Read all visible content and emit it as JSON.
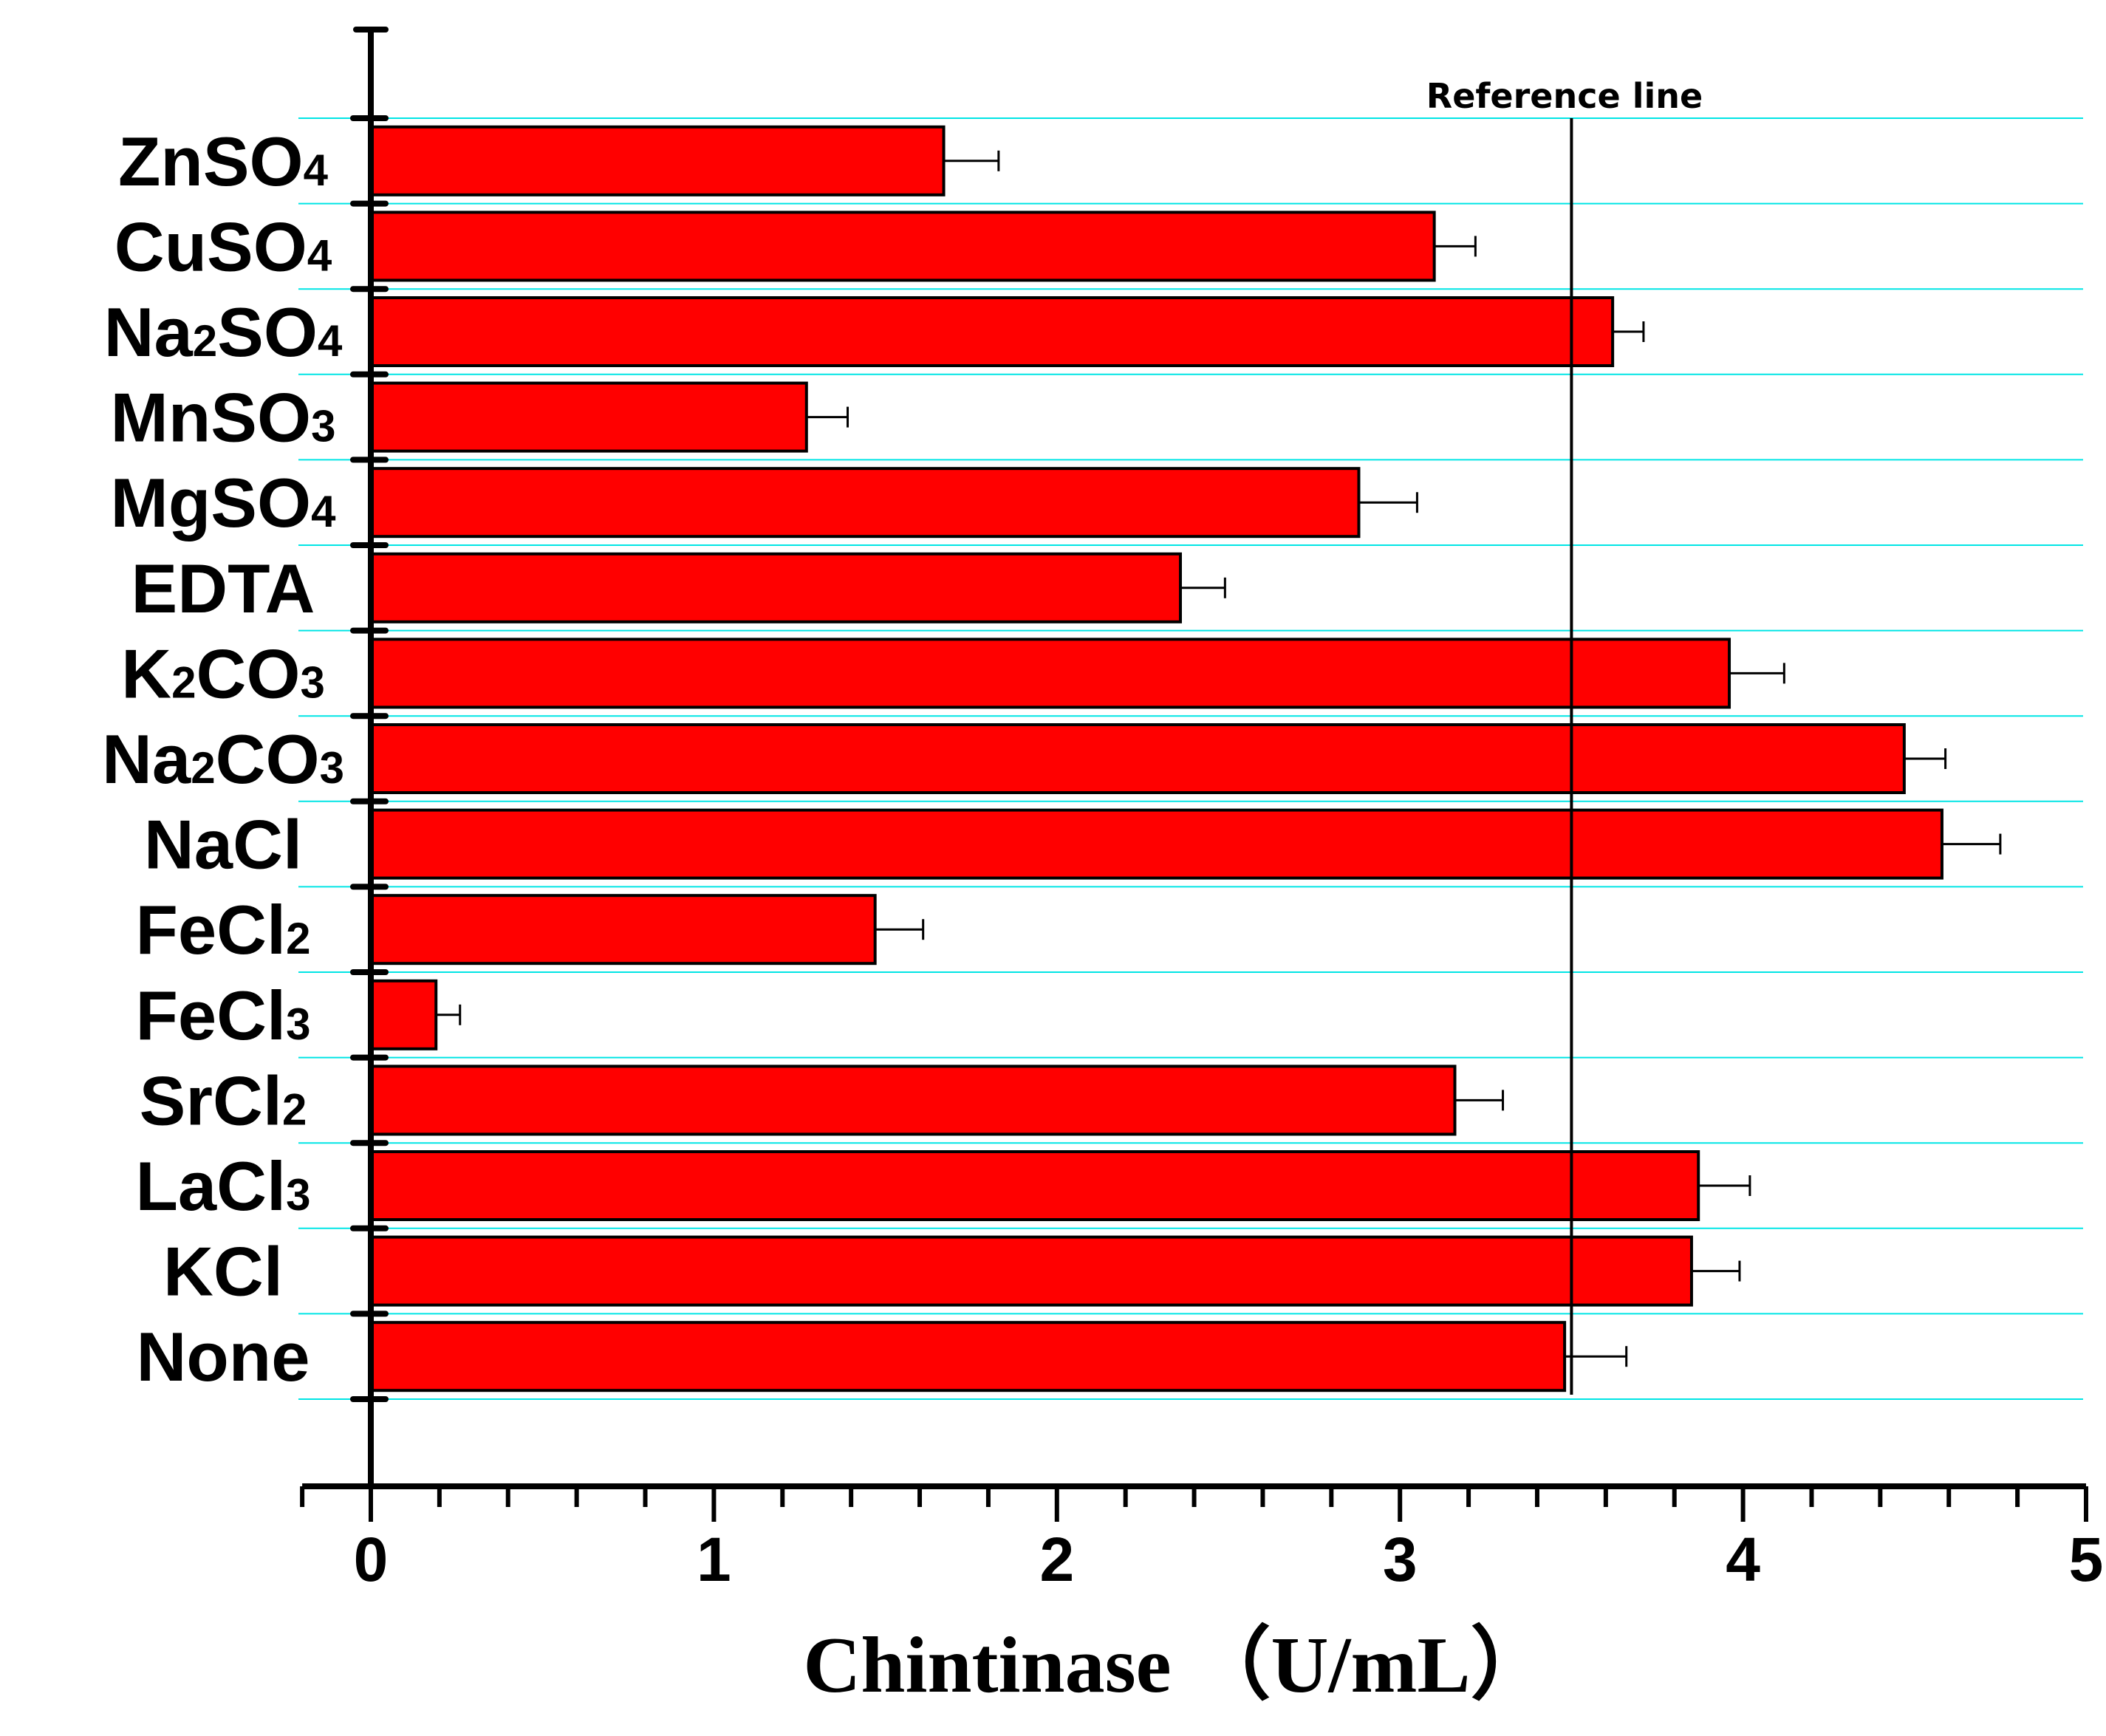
{
  "chart_data": {
    "type": "bar",
    "orientation": "horizontal",
    "title": "",
    "xlabel": "Chintinase （U/mL）",
    "ylabel": "",
    "xlim": [
      -0.2,
      5
    ],
    "x_ticks": [
      "0",
      "1",
      "2",
      "3",
      "4",
      "5"
    ],
    "grid": "horizontal",
    "categories": [
      {
        "label": "None"
      },
      {
        "label": "KCl"
      },
      {
        "label": "LaCl",
        "sub": "3"
      },
      {
        "label": "SrCl",
        "sub": "2"
      },
      {
        "label": "FeCl",
        "sub": "3"
      },
      {
        "label": "FeCl",
        "sub": "2"
      },
      {
        "label": "NaCl"
      },
      {
        "label": "Na",
        "sub": "2",
        "suffix": "CO",
        "sub2": "3"
      },
      {
        "label": "K",
        "sub": "2",
        "suffix": "CO",
        "sub2": "3"
      },
      {
        "label": "EDTA"
      },
      {
        "label": "MgSO",
        "sub": "4"
      },
      {
        "label": "MnSO",
        "sub": "3"
      },
      {
        "label": "Na",
        "sub": "2",
        "suffix": "SO",
        "sub2": "4"
      },
      {
        "label": "CuSO",
        "sub": "4"
      },
      {
        "label": "ZnSO",
        "sub": "4"
      }
    ],
    "values": [
      3.48,
      3.85,
      3.87,
      3.16,
      0.19,
      1.47,
      4.58,
      4.47,
      3.96,
      2.36,
      2.88,
      1.27,
      3.62,
      3.1,
      1.67
    ],
    "errors": [
      0.18,
      0.14,
      0.15,
      0.14,
      0.07,
      0.14,
      0.17,
      0.12,
      0.16,
      0.13,
      0.17,
      0.12,
      0.09,
      0.12,
      0.16
    ],
    "bar_color": "#ff0000",
    "grid_color": "#00e5e5",
    "reference_line": {
      "value": 3.5,
      "label": "Reference line"
    }
  }
}
